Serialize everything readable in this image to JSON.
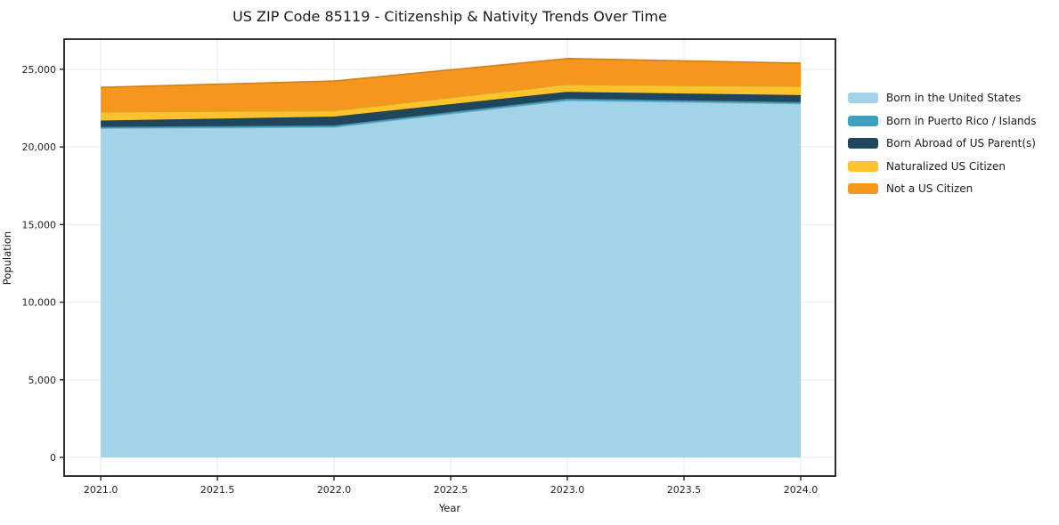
{
  "title": "US ZIP Code 85119 - Citizenship & Nativity Trends Over Time",
  "chart_data": {
    "type": "area",
    "stacked": true,
    "title": "US ZIP Code 85119 - Citizenship & Nativity Trends Over Time",
    "xlabel": "Year",
    "ylabel": "Population",
    "x": [
      2021,
      2022,
      2023,
      2024
    ],
    "series": [
      {
        "name": "Born in the United States",
        "color": "#a3d3e8",
        "values": [
          21200,
          21270,
          22990,
          22780
        ]
      },
      {
        "name": "Born in Puerto Rico / Islands",
        "color": "#3fa0c0",
        "values": [
          95,
          115,
          120,
          115
        ]
      },
      {
        "name": "Born Abroad of US Parent(s)",
        "color": "#20465c",
        "values": [
          400,
          570,
          440,
          440
        ]
      },
      {
        "name": "Naturalized US Citizen",
        "color": "#fcc32d",
        "values": [
          560,
          385,
          470,
          570
        ]
      },
      {
        "name": "Not a US Citizen",
        "color": "#f7961f",
        "values": [
          1580,
          1900,
          1670,
          1490
        ]
      }
    ],
    "xticks": [
      2021.0,
      2021.5,
      2022.0,
      2022.5,
      2023.0,
      2023.5,
      2024.0
    ],
    "xtick_labels": [
      "2021.0",
      "2021.5",
      "2022.0",
      "2022.5",
      "2023.0",
      "2023.5",
      "2024.0"
    ],
    "yticks": [
      0,
      5000,
      10000,
      15000,
      20000,
      25000
    ],
    "ytick_labels": [
      "0",
      "5,000",
      "10,000",
      "15,000",
      "20,000",
      "25,000"
    ],
    "xlim": [
      2020.843,
      2024.149
    ],
    "ylim": [
      -1200,
      26940
    ],
    "grid": true,
    "grid_color": "#e9e9e9",
    "spine_color": "#1a1a1a",
    "tick_color": "#262626",
    "legend_position": "right"
  }
}
